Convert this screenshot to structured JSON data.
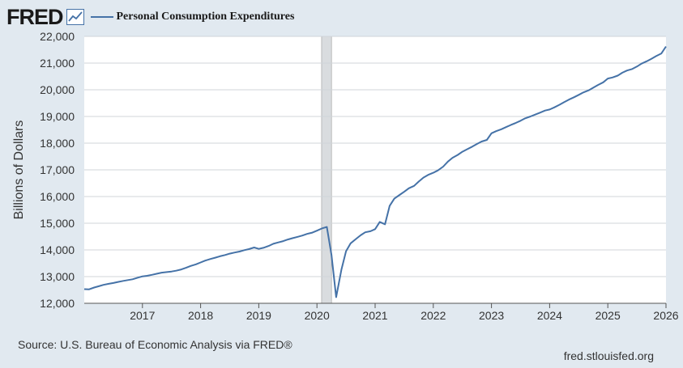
{
  "header": {
    "logo_text": "FRED",
    "legend_label": "Personal Consumption Expenditures",
    "icon": "graph-icon"
  },
  "footer": {
    "source": "Source: U.S. Bureau of Economic Analysis via FRED®",
    "site": "fred.stlouisfed.org"
  },
  "colors": {
    "background": "#e1e9f0",
    "plot_background": "#ffffff",
    "series": "#4572a7",
    "recession": "#d9dcdf"
  },
  "chart_data": {
    "type": "line",
    "title": "",
    "xlabel": "",
    "ylabel": "Billions of Dollars",
    "xlim": [
      2016.0,
      2026.0
    ],
    "ylim": [
      12000,
      22000
    ],
    "yticks": [
      12000,
      13000,
      14000,
      15000,
      16000,
      17000,
      18000,
      19000,
      20000,
      21000,
      22000
    ],
    "ytick_labels": [
      "12,000",
      "13,000",
      "14,000",
      "15,000",
      "16,000",
      "17,000",
      "18,000",
      "19,000",
      "20,000",
      "21,000",
      "22,000"
    ],
    "xticks": [
      2017,
      2018,
      2019,
      2020,
      2021,
      2022,
      2023,
      2024,
      2025,
      2026
    ],
    "xtick_labels": [
      "2017",
      "2018",
      "2019",
      "2020",
      "2021",
      "2022",
      "2023",
      "2024",
      "2025",
      "2026"
    ],
    "grid": true,
    "recession": {
      "start": 2020.08,
      "end": 2020.25
    },
    "series": [
      {
        "name": "Personal Consumption Expenditures",
        "x": [
          2016.0,
          2016.08,
          2016.17,
          2016.25,
          2016.33,
          2016.42,
          2016.5,
          2016.58,
          2016.67,
          2016.75,
          2016.83,
          2016.92,
          2017.0,
          2017.08,
          2017.17,
          2017.25,
          2017.33,
          2017.42,
          2017.5,
          2017.58,
          2017.67,
          2017.75,
          2017.83,
          2017.92,
          2018.0,
          2018.08,
          2018.17,
          2018.25,
          2018.33,
          2018.42,
          2018.5,
          2018.58,
          2018.67,
          2018.75,
          2018.83,
          2018.92,
          2019.0,
          2019.08,
          2019.17,
          2019.25,
          2019.33,
          2019.42,
          2019.5,
          2019.58,
          2019.67,
          2019.75,
          2019.83,
          2019.92,
          2020.0,
          2020.08,
          2020.17,
          2020.25,
          2020.33,
          2020.42,
          2020.5,
          2020.58,
          2020.67,
          2020.75,
          2020.83,
          2020.92,
          2021.0,
          2021.08,
          2021.17,
          2021.25,
          2021.33,
          2021.42,
          2021.5,
          2021.58,
          2021.67,
          2021.75,
          2021.83,
          2021.92,
          2022.0,
          2022.08,
          2022.17,
          2022.25,
          2022.33,
          2022.42,
          2022.5,
          2022.58,
          2022.67,
          2022.75,
          2022.83,
          2022.92,
          2023.0,
          2023.08,
          2023.17,
          2023.25,
          2023.33,
          2023.42,
          2023.5,
          2023.58,
          2023.67,
          2023.75,
          2023.83,
          2023.92,
          2024.0,
          2024.08,
          2024.17,
          2024.25,
          2024.33,
          2024.42,
          2024.5,
          2024.58,
          2024.67,
          2024.75,
          2024.83,
          2024.92,
          2025.0,
          2025.08,
          2025.17,
          2025.25,
          2025.33,
          2025.42,
          2025.5,
          2025.58,
          2025.67,
          2025.75,
          2025.83,
          2025.92,
          2026.0
        ],
        "values": [
          12530,
          12520,
          12590,
          12640,
          12690,
          12730,
          12760,
          12800,
          12840,
          12870,
          12900,
          12960,
          13010,
          13030,
          13070,
          13110,
          13150,
          13170,
          13190,
          13220,
          13270,
          13330,
          13400,
          13460,
          13530,
          13600,
          13660,
          13710,
          13760,
          13810,
          13860,
          13900,
          13940,
          13990,
          14030,
          14090,
          14040,
          14080,
          14150,
          14230,
          14280,
          14330,
          14390,
          14440,
          14490,
          14540,
          14600,
          14650,
          14720,
          14800,
          14860,
          13820,
          12230,
          13260,
          13950,
          14250,
          14410,
          14550,
          14660,
          14700,
          14780,
          15050,
          14960,
          15650,
          15920,
          16060,
          16180,
          16310,
          16400,
          16560,
          16710,
          16820,
          16890,
          16980,
          17120,
          17310,
          17450,
          17560,
          17680,
          17770,
          17870,
          17970,
          18060,
          18120,
          18370,
          18450,
          18520,
          18600,
          18680,
          18760,
          18840,
          18930,
          19000,
          19070,
          19140,
          19220,
          19260,
          19340,
          19440,
          19540,
          19630,
          19720,
          19810,
          19900,
          19980,
          20080,
          20180,
          20280,
          20420,
          20460,
          20530,
          20640,
          20720,
          20780,
          20870,
          20980,
          21070,
          21160,
          21260,
          21360,
          21620
        ]
      }
    ]
  }
}
